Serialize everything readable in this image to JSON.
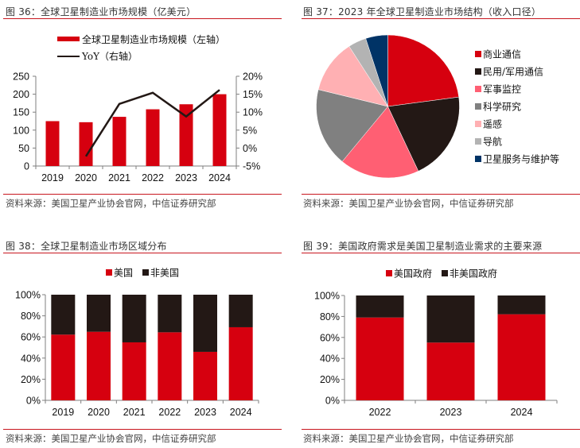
{
  "colors": {
    "red": "#d6000f",
    "black": "#231815",
    "pink": "#ff5f73",
    "gray": "#808080",
    "light_pink": "#ffb0b3",
    "light_gray": "#b3b3b3",
    "navy": "#003366",
    "separator": "#c8161e"
  },
  "figures": [
    {
      "title": "图 36：全球卫星制造业市场规模（亿美元）",
      "source": "资料来源：美国卫星产业协会官网，中信证券研究部"
    },
    {
      "title": "图 37：2023 年全球卫星制造业市场结构（收入口径）",
      "source": "资料来源：美国卫星产业协会官网，中信证券研究部"
    },
    {
      "title": "图 38：全球卫星制造业市场区域分布",
      "source": "资料来源：美国卫星产业协会官网，中信证券研究部"
    },
    {
      "title": "图 39：美国政府需求是美国卫星制造业需求的主要来源",
      "source": "资料来源：美国卫星产业协会官网，中信证券研究部"
    }
  ],
  "chart_data": [
    {
      "type": "bar",
      "id": "fig36",
      "title": "全球卫星制造业市场规模（亿美元）",
      "categories": [
        "2019",
        "2020",
        "2021",
        "2022",
        "2023",
        "2024"
      ],
      "series": [
        {
          "name": "全球卫星制造业市场规模（左轴）",
          "kind": "bar",
          "axis": "left",
          "color": "#d6000f",
          "values": [
            125,
            122,
            137,
            158,
            172,
            200
          ]
        },
        {
          "name": "YoY（右轴）",
          "kind": "line",
          "axis": "right",
          "color": "#231815",
          "values": [
            null,
            -2.3,
            12.3,
            15.4,
            8.8,
            16.2
          ]
        }
      ],
      "y_left": {
        "ylim": [
          0,
          250
        ],
        "ticks": [
          0,
          50,
          100,
          150,
          200,
          250
        ],
        "tick_labels": [
          "0",
          "50",
          "100",
          "150",
          "200",
          "250"
        ]
      },
      "y_right": {
        "ylim": [
          -5,
          20
        ],
        "ticks": [
          -5,
          0,
          5,
          10,
          15,
          20
        ],
        "tick_labels": [
          "-5%",
          "0%",
          "5%",
          "10%",
          "15%",
          "20%"
        ]
      },
      "legend": {
        "placement": "top-center",
        "labels": [
          "全球卫星制造业市场规模（左轴）",
          "YoY（右轴）"
        ]
      },
      "grid": false
    },
    {
      "type": "pie",
      "id": "fig37",
      "title": "2023 年全球卫星制造业市场结构（收入口径）",
      "labels": [
        "商业通信",
        "民用/军用通信",
        "军事监控",
        "科学研究",
        "遥感",
        "导航",
        "卫星服务与维护等"
      ],
      "values": [
        22.9,
        20.1,
        18.0,
        17.8,
        12.1,
        4.1,
        5.0
      ],
      "colors": [
        "#d6000f",
        "#231815",
        "#ff5f73",
        "#808080",
        "#ffb0b3",
        "#b3b3b3",
        "#003366"
      ],
      "start": "12 o'clock, clockwise",
      "legend": {
        "placement": "right"
      }
    },
    {
      "type": "bar",
      "stacked": true,
      "id": "fig38",
      "title": "全球卫星制造业市场区域分布",
      "categories": [
        "2019",
        "2020",
        "2021",
        "2022",
        "2023",
        "2024"
      ],
      "series": [
        {
          "name": "美国",
          "color": "#d6000f",
          "values": [
            62.2,
            64.9,
            54.9,
            64.4,
            45.9,
            69.2
          ]
        },
        {
          "name": "非美国",
          "color": "#231815",
          "values": [
            37.8,
            35.1,
            45.1,
            35.6,
            54.1,
            30.8
          ]
        }
      ],
      "ylim": [
        0,
        100
      ],
      "ticks": [
        0,
        20,
        40,
        60,
        80,
        100
      ],
      "tick_labels": [
        "0%",
        "20%",
        "40%",
        "60%",
        "80%",
        "100%"
      ],
      "legend": {
        "placement": "top-center",
        "labels": [
          "美国",
          "非美国"
        ]
      },
      "grid": false
    },
    {
      "type": "bar",
      "stacked": true,
      "id": "fig39",
      "title": "美国政府需求是美国卫星制造业需求的主要来源",
      "categories": [
        "2022",
        "2023",
        "2024"
      ],
      "series": [
        {
          "name": "美国政府",
          "color": "#d6000f",
          "values": [
            79.0,
            55.1,
            82.1
          ]
        },
        {
          "name": "非美国政府",
          "color": "#231815",
          "values": [
            21.0,
            44.9,
            17.9
          ]
        }
      ],
      "ylim": [
        0,
        100
      ],
      "ticks": [
        0,
        20,
        40,
        60,
        80,
        100
      ],
      "tick_labels": [
        "0%",
        "20%",
        "40%",
        "60%",
        "80%",
        "100%"
      ],
      "legend": {
        "placement": "top-center",
        "labels": [
          "美国政府",
          "非美国政府"
        ]
      },
      "grid": false
    }
  ]
}
